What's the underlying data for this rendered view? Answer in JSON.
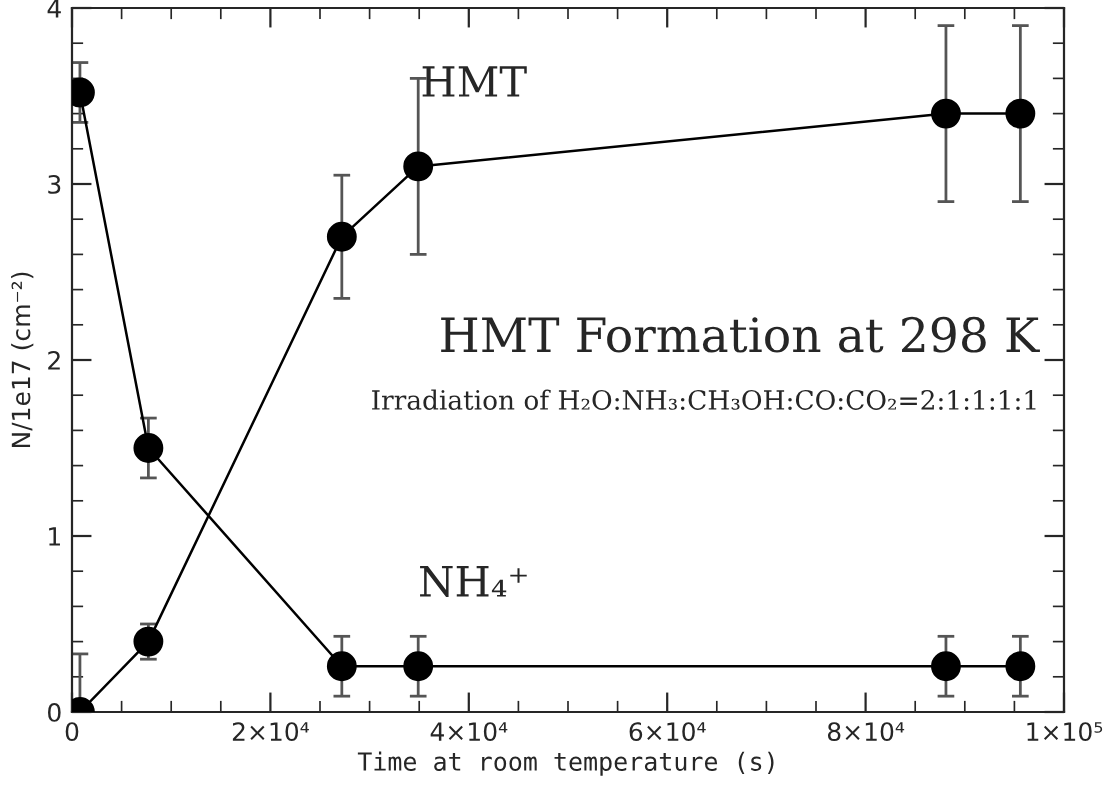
{
  "chart_data": {
    "type": "line",
    "title": "HMT Formation at 298 K",
    "subtitle": "Irradiation of H₂O:NH₃:CH₃OH:CO:CO₂=2:1:1:1:1",
    "xlabel": "Time at room temperature (s)",
    "ylabel": "N/1e17 (cm⁻²)",
    "x": [
      800,
      7700,
      27200,
      34900,
      88100,
      95600
    ],
    "series": [
      {
        "name": "HMT",
        "color": "#000000",
        "values": [
          0,
          0.4,
          2.7,
          3.1,
          3.4,
          3.4
        ],
        "errors": [
          [
            0,
            0.33
          ],
          0.1,
          0.35,
          0.5,
          0.5,
          0.5
        ]
      },
      {
        "name": "NH₄⁺",
        "color": "#000000",
        "values": [
          3.52,
          1.5,
          0.26,
          0.26,
          0.26,
          0.26
        ],
        "errors": [
          0.17,
          0.17,
          0.17,
          0.17,
          0.17,
          0.17
        ]
      }
    ],
    "xlim": [
      0,
      100000
    ],
    "xticks": [
      0,
      {
        "value": 20000,
        "label": "2×10⁴"
      },
      {
        "value": 40000,
        "label": "4×10⁴"
      },
      {
        "value": 60000,
        "label": "6×10⁴"
      },
      {
        "value": 80000,
        "label": "8×10⁴"
      },
      {
        "value": 100000,
        "label": "1×10⁵"
      }
    ],
    "ylim": [
      0,
      4
    ],
    "yticks": [
      0,
      1,
      2,
      3,
      4
    ],
    "marker": "circle",
    "line_style": "solid",
    "grid": false,
    "legend": false
  }
}
